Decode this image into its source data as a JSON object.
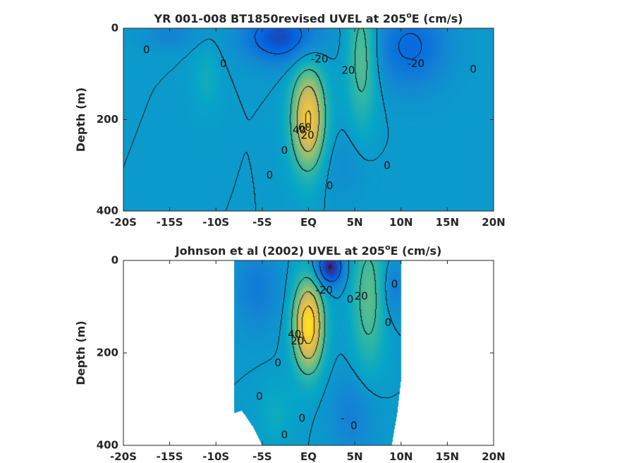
{
  "chart_data": [
    {
      "type": "heatmap",
      "subtype": "filled-contour",
      "title_main": "YR 001-008 BT1850revised UVEL at 205",
      "title_sup": "o",
      "title_end": "E (cm/s)",
      "ylabel": "Depth (m)",
      "xlabel": "",
      "xlim": [
        -20,
        20
      ],
      "ylim": [
        0,
        400
      ],
      "y_reversed": true,
      "x_ticks": [
        -20,
        -15,
        -10,
        -5,
        0,
        5,
        10,
        15,
        20
      ],
      "x_tick_labels": [
        "-20S",
        "-15S",
        "-10S",
        "-5S",
        "EQ",
        "5N",
        "10N",
        "15N",
        "20N"
      ],
      "y_ticks": [
        0,
        200,
        400
      ],
      "y_tick_labels": [
        "0",
        "200",
        "400"
      ],
      "colormap": "parula",
      "color_range": [
        -40,
        80
      ],
      "data_coverage": [
        [
          -20,
          0
        ],
        [
          20,
          0
        ],
        [
          20,
          400
        ],
        [
          -20,
          400
        ]
      ],
      "features": [
        {
          "x": 0,
          "y": 200,
          "rx": 1.8,
          "ry": 110,
          "amp": 62
        },
        {
          "x": 5.8,
          "y": 60,
          "rx": 1.6,
          "ry": 150,
          "amp": 28
        },
        {
          "x": -3,
          "y": 20,
          "rx": 4,
          "ry": 55,
          "amp": -32
        },
        {
          "x": 11,
          "y": 40,
          "rx": 4,
          "ry": 90,
          "amp": -22
        },
        {
          "x": -15,
          "y": 15,
          "rx": 3,
          "ry": 30,
          "amp": -10
        },
        {
          "x": -11,
          "y": 110,
          "rx": 1.5,
          "ry": 70,
          "amp": 9
        },
        {
          "x": 3.5,
          "y": 300,
          "rx": 3,
          "ry": 80,
          "amp": -6
        }
      ],
      "contour_labels": [
        {
          "text": "0",
          "x": -17.5,
          "y": 48
        },
        {
          "text": "0",
          "x": -9.2,
          "y": 78
        },
        {
          "text": "-20",
          "x": 1.2,
          "y": 68
        },
        {
          "text": "20",
          "x": 4.3,
          "y": 93
        },
        {
          "text": "-20",
          "x": 11.6,
          "y": 78
        },
        {
          "text": "0",
          "x": 17.8,
          "y": 90
        },
        {
          "text": "40",
          "x": -1.0,
          "y": 223
        },
        {
          "text": "60",
          "x": -0.4,
          "y": 218
        },
        {
          "text": "20",
          "x": -0.1,
          "y": 235
        },
        {
          "text": "0",
          "x": -2.6,
          "y": 268
        },
        {
          "text": "0",
          "x": -4.2,
          "y": 322
        },
        {
          "text": "0",
          "x": 2.3,
          "y": 345
        },
        {
          "text": "0",
          "x": 8.5,
          "y": 301
        }
      ]
    },
    {
      "type": "heatmap",
      "subtype": "filled-contour",
      "title_main": "Johnson et al (2002) UVEL at 205",
      "title_sup": "o",
      "title_end": "E (cm/s)",
      "ylabel": "Depth (m)",
      "xlabel": "",
      "xlim": [
        -20,
        20
      ],
      "ylim": [
        0,
        400
      ],
      "y_reversed": true,
      "x_ticks": [
        -20,
        -15,
        -10,
        -5,
        0,
        5,
        10,
        15,
        20
      ],
      "x_tick_labels": [
        "-20S",
        "-15S",
        "-10S",
        "-5S",
        "EQ",
        "5N",
        "10N",
        "15N",
        "20N"
      ],
      "y_ticks": [
        0,
        200,
        400
      ],
      "y_tick_labels": [
        "0",
        "200",
        "400"
      ],
      "colormap": "parula",
      "color_range": [
        -40,
        80
      ],
      "data_coverage": [
        [
          -8,
          0
        ],
        [
          10,
          0
        ],
        [
          10,
          260
        ],
        [
          9.6,
          330
        ],
        [
          9,
          400
        ],
        [
          -5,
          400
        ],
        [
          -6,
          360
        ],
        [
          -7.2,
          325
        ],
        [
          -8,
          330
        ]
      ],
      "features": [
        {
          "x": 0,
          "y": 140,
          "rx": 1.6,
          "ry": 95,
          "amp": 72
        },
        {
          "x": 6.5,
          "y": 80,
          "rx": 1.8,
          "ry": 160,
          "amp": 26
        },
        {
          "x": 2.3,
          "y": 15,
          "rx": 1.5,
          "ry": 40,
          "amp": -42
        },
        {
          "x": -5.5,
          "y": 60,
          "rx": 2.5,
          "ry": 90,
          "amp": -14
        },
        {
          "x": 4.8,
          "y": 330,
          "rx": 2.5,
          "ry": 90,
          "amp": -12
        },
        {
          "x": -3.5,
          "y": 330,
          "rx": 2,
          "ry": 70,
          "amp": 8
        },
        {
          "x": 9.2,
          "y": 60,
          "rx": 1.2,
          "ry": 60,
          "amp": -14
        }
      ],
      "contour_labels": [
        {
          "text": "-20",
          "x": 1.7,
          "y": 65
        },
        {
          "text": "20",
          "x": 5.7,
          "y": 78
        },
        {
          "text": "0",
          "x": 4.5,
          "y": 85
        },
        {
          "text": "0",
          "x": 9.3,
          "y": 52
        },
        {
          "text": "0",
          "x": 8.6,
          "y": 135
        },
        {
          "text": "40",
          "x": -1.5,
          "y": 160
        },
        {
          "text": "20",
          "x": -1.2,
          "y": 175
        },
        {
          "text": "0",
          "x": -3.3,
          "y": 222
        },
        {
          "text": "0",
          "x": -5.3,
          "y": 295
        },
        {
          "text": "0",
          "x": -0.7,
          "y": 342
        },
        {
          "text": "0",
          "x": -2.6,
          "y": 378
        },
        {
          "text": "0",
          "x": 4.9,
          "y": 358
        },
        {
          "text": "-",
          "x": 3.7,
          "y": 342
        }
      ]
    }
  ]
}
